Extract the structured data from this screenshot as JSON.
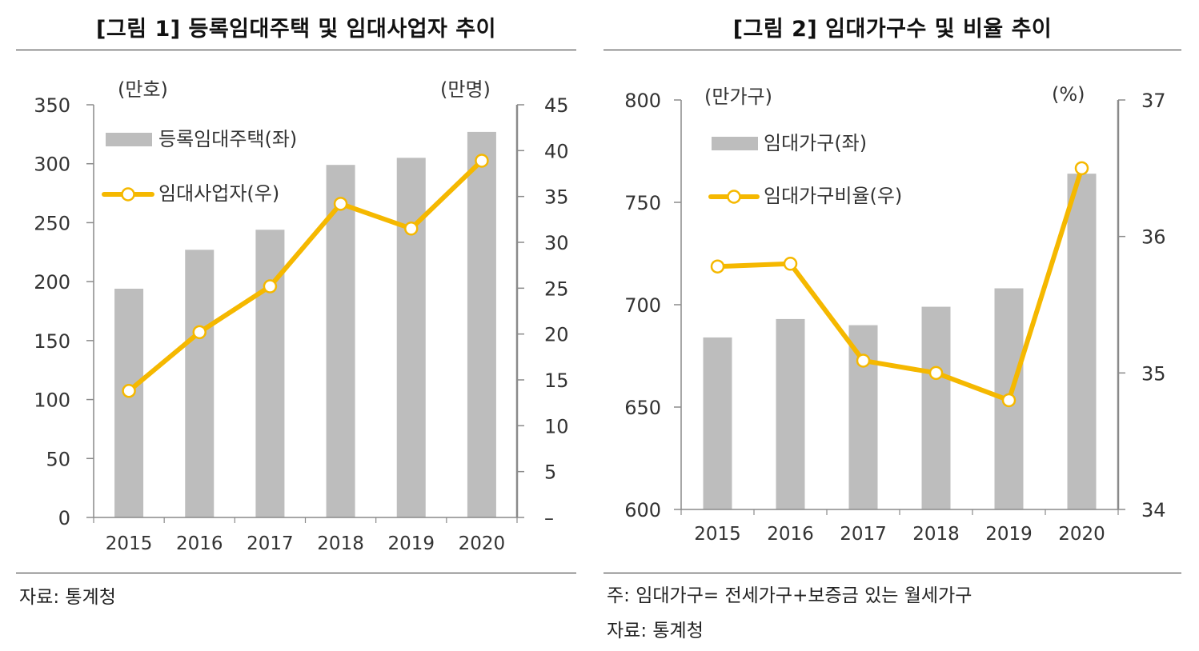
{
  "colors": {
    "bar": "#bdbdbd",
    "line": "#f5b800",
    "axis": "#8a8a8a",
    "text": "#333333",
    "rule": "#333333"
  },
  "left": {
    "title": "[그림 1] 등록임대주택 및 임대사업자 추이",
    "source": "자료: 통계청"
  },
  "right": {
    "title": "[그림 2] 임대가구수 및 비율 추이",
    "note": "주: 임대가구= 전세가구+보증금 있는 월세가구",
    "source": "자료: 통계청"
  },
  "chart_data": [
    {
      "type": "bar+line",
      "title": "[그림 1] 등록임대주택 및 임대사업자 추이",
      "categories": [
        "2015",
        "2016",
        "2017",
        "2018",
        "2019",
        "2020"
      ],
      "series": [
        {
          "name": "등록임대주택(좌)",
          "type": "bar",
          "axis": "left",
          "values": [
            194,
            227,
            244,
            299,
            305,
            327
          ]
        },
        {
          "name": "임대사업자(우)",
          "type": "line",
          "axis": "right",
          "values": [
            13.8,
            20.2,
            25.2,
            34.2,
            31.5,
            38.9
          ]
        }
      ],
      "left_axis": {
        "unit": "(만호)",
        "ylim": [
          0,
          350
        ],
        "ticks": [
          "0",
          "50",
          "100",
          "150",
          "200",
          "250",
          "300",
          "350"
        ]
      },
      "right_axis": {
        "unit": "(만명)",
        "ylim": [
          0,
          45
        ],
        "ticks": [
          "–",
          "5",
          "10",
          "15",
          "20",
          "25",
          "30",
          "35",
          "40",
          "45"
        ]
      },
      "legend_position": "top-left"
    },
    {
      "type": "bar+line",
      "title": "[그림 2] 임대가구수 및 비율 추이",
      "categories": [
        "2015",
        "2016",
        "2017",
        "2018",
        "2019",
        "2020"
      ],
      "series": [
        {
          "name": "임대가구(좌)",
          "type": "bar",
          "axis": "left",
          "values": [
            684,
            693,
            690,
            699,
            708,
            764
          ]
        },
        {
          "name": "임대가구비율(우)",
          "type": "line",
          "axis": "right",
          "values": [
            35.78,
            35.8,
            35.09,
            35.0,
            34.8,
            36.5
          ]
        }
      ],
      "left_axis": {
        "unit": "(만가구)",
        "ylim": [
          600,
          800
        ],
        "ticks": [
          "600",
          "650",
          "700",
          "750",
          "800"
        ]
      },
      "right_axis": {
        "unit": "(%)",
        "ylim": [
          34,
          37
        ],
        "ticks": [
          "34",
          "35",
          "36",
          "37"
        ]
      },
      "legend_position": "top-left"
    }
  ]
}
